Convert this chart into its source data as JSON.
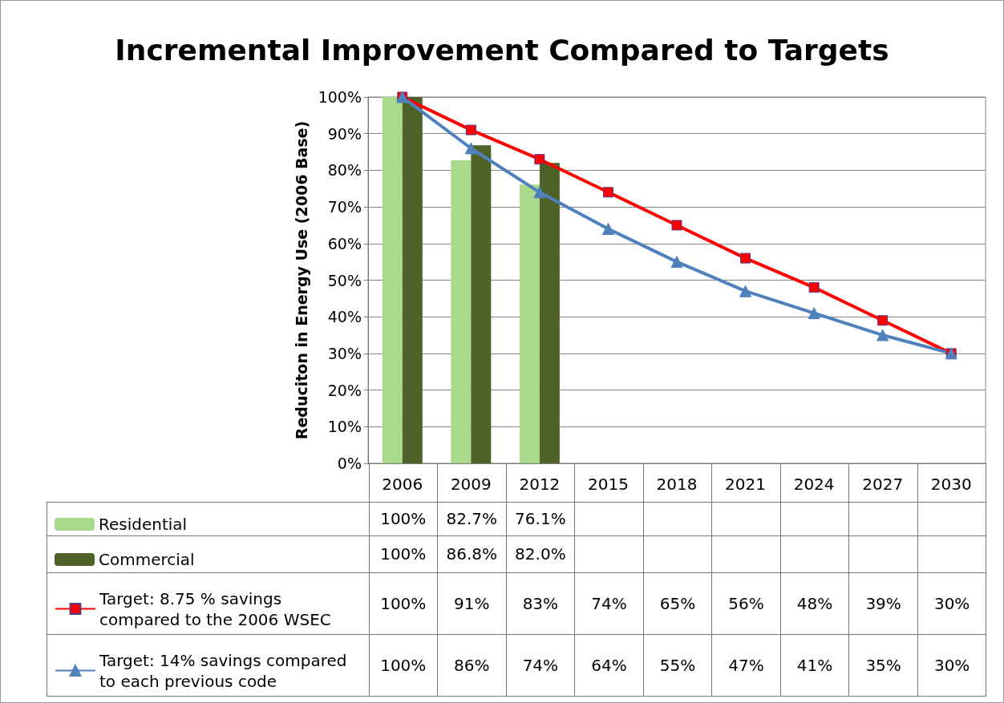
{
  "chart_data": {
    "type": "bar",
    "title": "Incremental Improvement Compared to Targets",
    "ylabel": "Reduciton in Energy Use (2006 Base)",
    "categories": [
      "2006",
      "2009",
      "2012",
      "2015",
      "2018",
      "2021",
      "2024",
      "2027",
      "2030"
    ],
    "series": [
      {
        "name": "Residential",
        "color": "#a9d98a",
        "values": [
          100,
          82.7,
          76.1,
          null,
          null,
          null,
          null,
          null,
          null
        ],
        "value_labels": [
          "100%",
          "82.7%",
          "76.1%",
          null,
          null,
          null,
          null,
          null,
          null
        ]
      },
      {
        "name": "Commercial",
        "color": "#4f6228",
        "values": [
          100,
          86.8,
          82.0,
          null,
          null,
          null,
          null,
          null,
          null
        ],
        "value_labels": [
          "100%",
          "86.8%",
          "82.0%",
          null,
          null,
          null,
          null,
          null,
          null
        ]
      },
      {
        "name": "Target: 8.75 % savings compared to the 2006 WSEC",
        "type": "line",
        "marker": "square",
        "color": "#ff0000",
        "values": [
          100,
          91,
          83,
          74,
          65,
          56,
          48,
          39,
          30
        ],
        "value_labels": [
          "100%",
          "91%",
          "83%",
          "74%",
          "65%",
          "56%",
          "48%",
          "39%",
          "30%"
        ]
      },
      {
        "name": "Target: 14% savings compared to each previous code",
        "type": "line",
        "marker": "triangle",
        "color": "#4f81bd",
        "values": [
          100,
          86,
          74,
          64,
          55,
          47,
          41,
          35,
          30
        ],
        "value_labels": [
          "100%",
          "86%",
          "74%",
          "64%",
          "55%",
          "47%",
          "41%",
          "35%",
          "30%"
        ]
      }
    ],
    "ylim": [
      0,
      100
    ],
    "yticks": [
      {
        "value": 0,
        "label": "0%"
      },
      {
        "value": 10,
        "label": "10%"
      },
      {
        "value": 20,
        "label": "20%"
      },
      {
        "value": 30,
        "label": "30%"
      },
      {
        "value": 40,
        "label": "40%"
      },
      {
        "value": 50,
        "label": "50%"
      },
      {
        "value": 60,
        "label": "60%"
      },
      {
        "value": 70,
        "label": "70%"
      },
      {
        "value": 80,
        "label": "80%"
      },
      {
        "value": 90,
        "label": "90%"
      },
      {
        "value": 100,
        "label": "100%"
      }
    ],
    "grid": "y",
    "legend": "bottom"
  }
}
